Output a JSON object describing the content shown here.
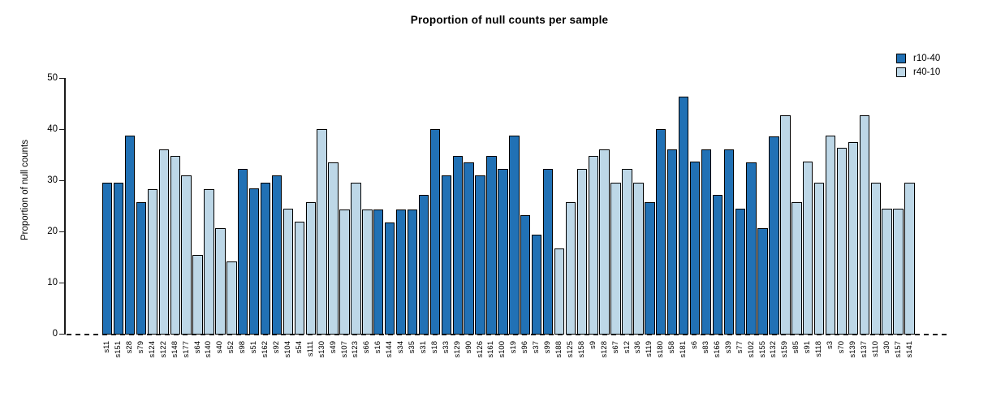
{
  "title": "Proportion of null counts per sample",
  "chart_data": {
    "type": "bar",
    "title": "Proportion of null counts per sample",
    "xlabel": "",
    "ylabel": "Proportion of null counts",
    "ylim": [
      0,
      50
    ],
    "yticks": [
      0,
      10,
      20,
      30,
      40,
      50
    ],
    "grid": false,
    "legend_position": "top-right",
    "zero_line_style": "dashed",
    "series": [
      {
        "name": "r10-40",
        "color": "#2171B5"
      },
      {
        "name": "r40-10",
        "color": "#BDD7E7"
      }
    ],
    "bars": [
      {
        "label": "s11",
        "value": 29.7,
        "group": "r10-40"
      },
      {
        "label": "s151",
        "value": 29.7,
        "group": "r10-40"
      },
      {
        "label": "s28",
        "value": 38.8,
        "group": "r10-40"
      },
      {
        "label": "s79",
        "value": 25.9,
        "group": "r10-40"
      },
      {
        "label": "s124",
        "value": 28.4,
        "group": "r40-10"
      },
      {
        "label": "s122",
        "value": 36.2,
        "group": "r40-10"
      },
      {
        "label": "s148",
        "value": 34.9,
        "group": "r40-10"
      },
      {
        "label": "s177",
        "value": 31.1,
        "group": "r40-10"
      },
      {
        "label": "s64",
        "value": 15.5,
        "group": "r40-10"
      },
      {
        "label": "s140",
        "value": 28.4,
        "group": "r40-10"
      },
      {
        "label": "s40",
        "value": 20.7,
        "group": "r40-10"
      },
      {
        "label": "s52",
        "value": 14.3,
        "group": "r40-10"
      },
      {
        "label": "s98",
        "value": 32.3,
        "group": "r10-40"
      },
      {
        "label": "s51",
        "value": 28.5,
        "group": "r10-40"
      },
      {
        "label": "s162",
        "value": 29.7,
        "group": "r10-40"
      },
      {
        "label": "s92",
        "value": 31.0,
        "group": "r10-40"
      },
      {
        "label": "s104",
        "value": 24.5,
        "group": "r40-10"
      },
      {
        "label": "s54",
        "value": 22.0,
        "group": "r40-10"
      },
      {
        "label": "s111",
        "value": 25.9,
        "group": "r40-10"
      },
      {
        "label": "s130",
        "value": 40.1,
        "group": "r40-10"
      },
      {
        "label": "s49",
        "value": 33.6,
        "group": "r40-10"
      },
      {
        "label": "s107",
        "value": 24.4,
        "group": "r40-10"
      },
      {
        "label": "s123",
        "value": 29.7,
        "group": "r40-10"
      },
      {
        "label": "s66",
        "value": 24.4,
        "group": "r40-10"
      },
      {
        "label": "s16",
        "value": 24.4,
        "group": "r10-40"
      },
      {
        "label": "s144",
        "value": 21.9,
        "group": "r10-40"
      },
      {
        "label": "s34",
        "value": 24.4,
        "group": "r10-40"
      },
      {
        "label": "s35",
        "value": 24.4,
        "group": "r10-40"
      },
      {
        "label": "s31",
        "value": 27.2,
        "group": "r10-40"
      },
      {
        "label": "s18",
        "value": 40.1,
        "group": "r10-40"
      },
      {
        "label": "s33",
        "value": 31.1,
        "group": "r10-40"
      },
      {
        "label": "s129",
        "value": 34.9,
        "group": "r10-40"
      },
      {
        "label": "s90",
        "value": 33.6,
        "group": "r10-40"
      },
      {
        "label": "s126",
        "value": 31.1,
        "group": "r10-40"
      },
      {
        "label": "s161",
        "value": 34.9,
        "group": "r10-40"
      },
      {
        "label": "s100",
        "value": 32.4,
        "group": "r10-40"
      },
      {
        "label": "s19",
        "value": 38.8,
        "group": "r10-40"
      },
      {
        "label": "s96",
        "value": 23.3,
        "group": "r10-40"
      },
      {
        "label": "s37",
        "value": 19.4,
        "group": "r10-40"
      },
      {
        "label": "s99",
        "value": 32.3,
        "group": "r10-40"
      },
      {
        "label": "s188",
        "value": 16.7,
        "group": "r40-10"
      },
      {
        "label": "s125",
        "value": 25.9,
        "group": "r40-10"
      },
      {
        "label": "s158",
        "value": 32.3,
        "group": "r40-10"
      },
      {
        "label": "s9",
        "value": 34.9,
        "group": "r40-10"
      },
      {
        "label": "s128",
        "value": 36.2,
        "group": "r40-10"
      },
      {
        "label": "s67",
        "value": 29.7,
        "group": "r40-10"
      },
      {
        "label": "s12",
        "value": 32.3,
        "group": "r40-10"
      },
      {
        "label": "s36",
        "value": 29.7,
        "group": "r40-10"
      },
      {
        "label": "s119",
        "value": 25.9,
        "group": "r10-40"
      },
      {
        "label": "s180",
        "value": 40.1,
        "group": "r10-40"
      },
      {
        "label": "s58",
        "value": 36.2,
        "group": "r10-40"
      },
      {
        "label": "s181",
        "value": 46.5,
        "group": "r10-40"
      },
      {
        "label": "s6",
        "value": 33.7,
        "group": "r10-40"
      },
      {
        "label": "s83",
        "value": 36.2,
        "group": "r10-40"
      },
      {
        "label": "s166",
        "value": 27.2,
        "group": "r10-40"
      },
      {
        "label": "s39",
        "value": 36.2,
        "group": "r10-40"
      },
      {
        "label": "s77",
        "value": 24.5,
        "group": "r10-40"
      },
      {
        "label": "s102",
        "value": 33.6,
        "group": "r10-40"
      },
      {
        "label": "s155",
        "value": 20.7,
        "group": "r10-40"
      },
      {
        "label": "s132",
        "value": 38.7,
        "group": "r10-40"
      },
      {
        "label": "s159",
        "value": 42.8,
        "group": "r40-10"
      },
      {
        "label": "s85",
        "value": 25.9,
        "group": "r40-10"
      },
      {
        "label": "s91",
        "value": 33.7,
        "group": "r40-10"
      },
      {
        "label": "s118",
        "value": 29.7,
        "group": "r40-10"
      },
      {
        "label": "s3",
        "value": 38.8,
        "group": "r40-10"
      },
      {
        "label": "s70",
        "value": 36.4,
        "group": "r40-10"
      },
      {
        "label": "s139",
        "value": 37.5,
        "group": "r40-10"
      },
      {
        "label": "s137",
        "value": 42.8,
        "group": "r40-10"
      },
      {
        "label": "s110",
        "value": 29.7,
        "group": "r40-10"
      },
      {
        "label": "s30",
        "value": 24.5,
        "group": "r40-10"
      },
      {
        "label": "s157",
        "value": 24.5,
        "group": "r40-10"
      },
      {
        "label": "s141",
        "value": 29.7,
        "group": "r40-10"
      }
    ]
  }
}
